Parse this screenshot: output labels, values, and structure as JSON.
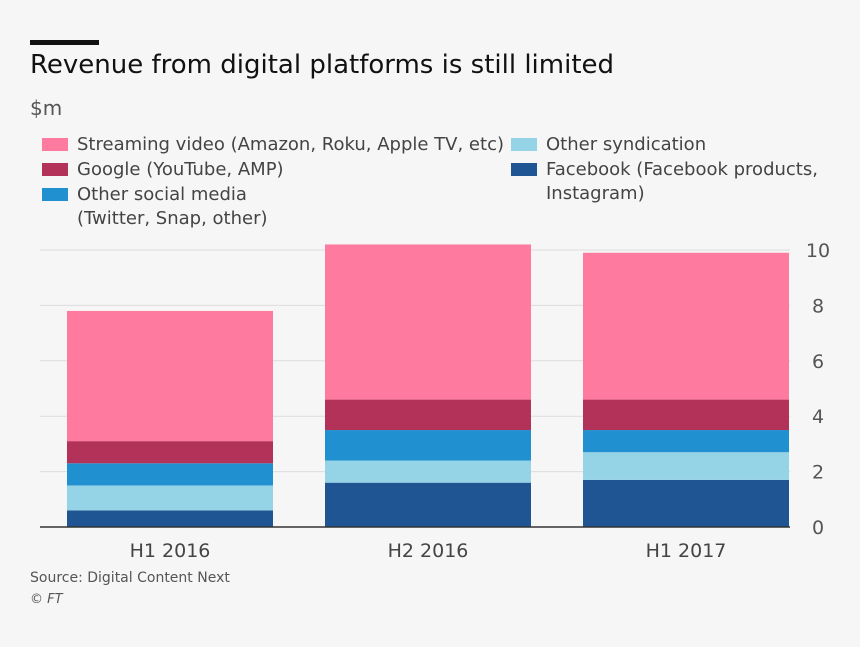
{
  "header": {
    "title": "Revenue from digital platforms is still limited",
    "unit": "$m"
  },
  "footer": {
    "source": "Source: Digital Content Next",
    "copyright": "© FT"
  },
  "colors": {
    "streaming": "#ff7a9f",
    "google": "#b3325a",
    "other_social": "#2090d0",
    "other_syndication": "#95d4e6",
    "facebook": "#1e5592",
    "grid": "#dcdcdc",
    "axis": "#333333"
  },
  "legend": [
    {
      "label": "Streaming video (Amazon, Roku, Apple TV, etc)",
      "color": "#ff7a9f"
    },
    {
      "label": "Google (YouTube, AMP)",
      "color": "#b3325a"
    },
    {
      "label": "Other social media\n(Twitter, Snap, other)",
      "color": "#2090d0"
    },
    {
      "label": "Other syndication",
      "color": "#95d4e6"
    },
    {
      "label": "Facebook (Facebook products,\nInstagram)",
      "color": "#1e5592"
    }
  ],
  "chart_data": {
    "type": "bar",
    "stacked": true,
    "title": "Revenue from digital platforms is still limited",
    "ylabel": "$m",
    "xlabel": "",
    "categories": [
      "H1 2016",
      "H2 2016",
      "H1 2017"
    ],
    "ylim": [
      0,
      10
    ],
    "yticks": [
      0,
      2,
      4,
      6,
      8,
      10
    ],
    "y_axis_side": "right",
    "grid": true,
    "legend_position": "top",
    "series": [
      {
        "name": "Facebook (Facebook products, Instagram)",
        "color": "#1e5592",
        "values": [
          0.6,
          1.6,
          1.7
        ]
      },
      {
        "name": "Other syndication",
        "color": "#95d4e6",
        "values": [
          0.9,
          0.8,
          1.0
        ]
      },
      {
        "name": "Other social media (Twitter, Snap, other)",
        "color": "#2090d0",
        "values": [
          0.8,
          1.1,
          0.8
        ]
      },
      {
        "name": "Google (YouTube, AMP)",
        "color": "#b3325a",
        "values": [
          0.8,
          1.1,
          1.1
        ]
      },
      {
        "name": "Streaming video (Amazon, Roku, Apple TV, etc)",
        "color": "#ff7a9f",
        "values": [
          4.7,
          5.6,
          5.3
        ]
      }
    ]
  }
}
